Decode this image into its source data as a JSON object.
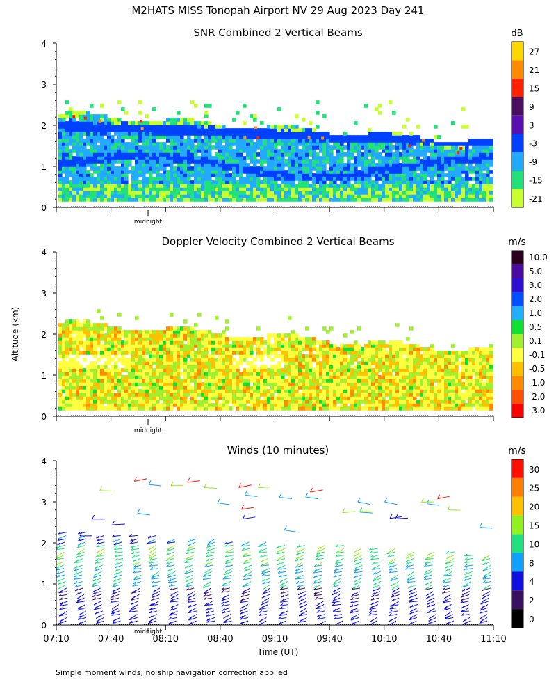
{
  "title": "M2HATS MISS Tonopah Airport NV  29 Aug 2023 Day 241",
  "footnote": "Simple moment winds, no ship navigation correction applied",
  "shared_ylabel": "Altitude (km)",
  "shared_xlabel": "Time (UT)",
  "midnight_label": "midnight",
  "chart_data": [
    {
      "type": "heatmap",
      "title": "SNR Combined 2 Vertical Beams",
      "unit": "dB",
      "ylim": [
        0,
        4
      ],
      "yticks": [
        "0",
        "1",
        "2",
        "3",
        "4"
      ],
      "colorbar": {
        "labels": [
          "27",
          "21",
          "15",
          "9",
          "3",
          "-3",
          "-9",
          "-15",
          "-21"
        ],
        "colors": [
          "#ffd700",
          "#ff8c00",
          "#ff2200",
          "#4b0f60",
          "#5a0fb0",
          "#0040ff",
          "#22aaff",
          "#22e07a",
          "#c8ff30"
        ]
      },
      "layers": {
        "note_values": "approx dB by altitude band",
        "bands": [
          {
            "from": 0.15,
            "to": 0.6,
            "value": -15
          },
          {
            "from": 0.6,
            "to": 1.2,
            "value": -9
          },
          {
            "from": 1.2,
            "to": 1.7,
            "value": -9
          },
          {
            "from": 1.7,
            "to": 2.2,
            "value": -3
          }
        ]
      }
    },
    {
      "type": "heatmap",
      "title": "Doppler Velocity Combined 2 Vertical Beams",
      "unit": "m/s",
      "ylim": [
        0,
        4
      ],
      "yticks": [
        "0",
        "1",
        "2",
        "3",
        "4"
      ],
      "colorbar": {
        "labels": [
          "10.0",
          "5.0",
          "3.0",
          "2.0",
          "1.0",
          "0.5",
          "0.1",
          "-0.1",
          "-0.5",
          "-1.0",
          "-2.0",
          "-3.0"
        ],
        "colors": [
          "#2a0020",
          "#4b0aa0",
          "#3010d0",
          "#0050ff",
          "#20b0ff",
          "#10e030",
          "#a0f030",
          "#ffff40",
          "#ffc000",
          "#ff8c00",
          "#ff5000",
          "#ff0000"
        ]
      }
    },
    {
      "type": "scatter",
      "title": "Winds (10 minutes)",
      "unit": "m/s",
      "ylim": [
        0,
        4
      ],
      "yticks": [
        "0",
        "1",
        "2",
        "3",
        "4"
      ],
      "xticks": [
        "07:10",
        "07:40",
        "08:10",
        "08:40",
        "09:10",
        "09:40",
        "10:10",
        "10:40",
        "11:10"
      ],
      "colorbar": {
        "labels": [
          "30",
          "25",
          "20",
          "15",
          "10",
          "8",
          "4",
          "2",
          "0"
        ],
        "colors": [
          "#ff1000",
          "#ff8000",
          "#ffc000",
          "#90f020",
          "#20e080",
          "#10a0ff",
          "#1010e0",
          "#3a1060",
          "#000000"
        ]
      },
      "profile_times_minutes_after_0710": [
        10,
        40,
        70,
        90,
        120,
        150,
        180,
        210,
        240
      ]
    }
  ]
}
